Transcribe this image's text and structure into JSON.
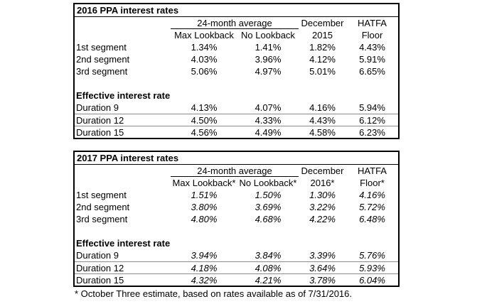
{
  "footnote": "* October Three estimate, based on rates available as of 7/31/2016.",
  "colors": {
    "background": "#ffffff",
    "text": "#000000",
    "table_border": "#000000",
    "duration_row_separator": "#8c8c8c"
  },
  "tables": [
    {
      "title": "2016 PPA interest rates",
      "header": {
        "group": "24-month average",
        "sub": [
          "Max Lookback",
          "No Lookback"
        ],
        "december_line1": "December",
        "december_line2": "2015",
        "hatfa_line1": "HATFA",
        "hatfa_line2": "Floor"
      },
      "segment_rows": [
        {
          "label": "1st segment",
          "values": [
            "1.34%",
            "1.41%",
            "1.82%",
            "4.43%"
          ]
        },
        {
          "label": "2nd segment",
          "values": [
            "4.03%",
            "3.96%",
            "4.12%",
            "5.91%"
          ]
        },
        {
          "label": "3rd segment",
          "values": [
            "5.06%",
            "4.97%",
            "5.01%",
            "6.65%"
          ]
        }
      ],
      "section_label": "Effective interest rate",
      "duration_rows": [
        {
          "label": "Duration 9",
          "values": [
            "4.13%",
            "4.07%",
            "4.16%",
            "5.94%"
          ]
        },
        {
          "label": "Duration 12",
          "values": [
            "4.50%",
            "4.33%",
            "4.43%",
            "6.12%"
          ]
        },
        {
          "label": "Duration 15",
          "values": [
            "4.56%",
            "4.49%",
            "4.58%",
            "6.23%"
          ]
        }
      ]
    },
    {
      "title": "2017 PPA interest rates",
      "header": {
        "group": "24-month average",
        "sub": [
          "Max Lookback*",
          "No Lookback*"
        ],
        "december_line1": "December",
        "december_line2": "2016*",
        "hatfa_line1": "HATFA",
        "hatfa_line2": "Floor*"
      },
      "segment_rows": [
        {
          "label": "1st segment",
          "values": [
            "1.51%",
            "1.50%",
            "1.30%",
            "4.16%"
          ]
        },
        {
          "label": "2nd segment",
          "values": [
            "3.80%",
            "3.69%",
            "3.22%",
            "5.72%"
          ]
        },
        {
          "label": "3rd segment",
          "values": [
            "4.80%",
            "4.68%",
            "4.22%",
            "6.48%"
          ]
        }
      ],
      "section_label": "Effective interest rate",
      "duration_rows": [
        {
          "label": "Duration 9",
          "values": [
            "3.94%",
            "3.84%",
            "3.39%",
            "5.76%"
          ]
        },
        {
          "label": "Duration 12",
          "values": [
            "4.18%",
            "4.08%",
            "3.64%",
            "5.93%"
          ]
        },
        {
          "label": "Duration 15",
          "values": [
            "4.32%",
            "4.21%",
            "3.78%",
            "6.04%"
          ]
        }
      ]
    }
  ]
}
